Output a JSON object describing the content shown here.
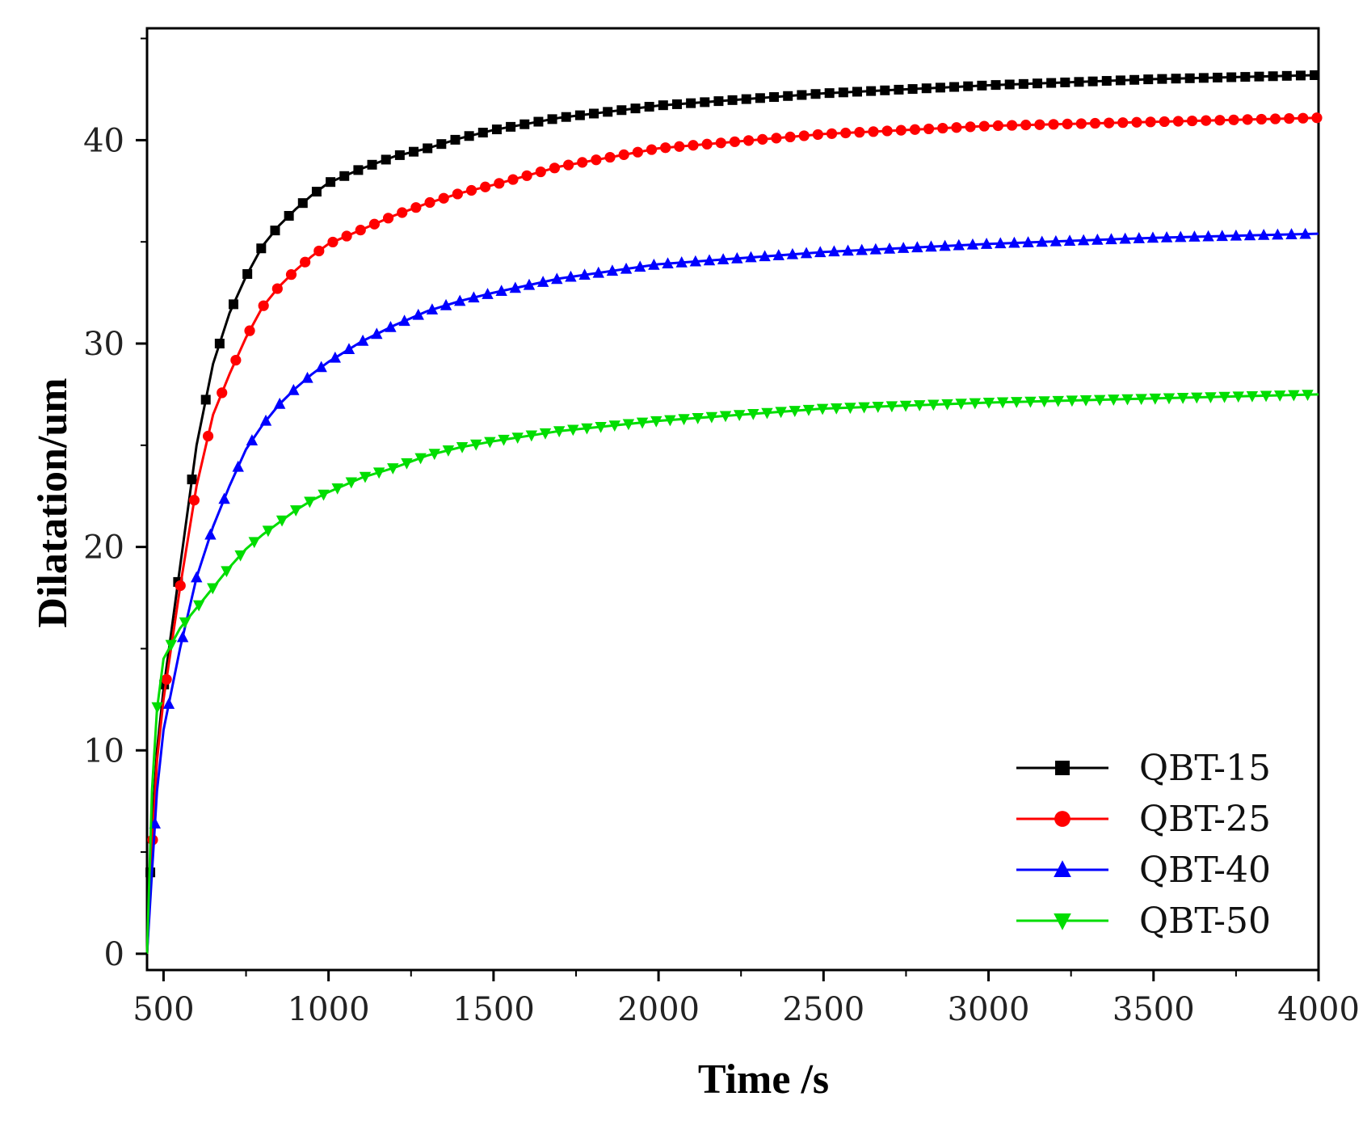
{
  "chart_data": {
    "type": "line",
    "title": "",
    "xlabel": "Time /s",
    "ylabel": "Dilatation/um",
    "xlim": [
      450,
      4000
    ],
    "ylim": [
      -0.8,
      45.5
    ],
    "xticks": [
      500,
      1000,
      1500,
      2000,
      2500,
      3000,
      3500,
      4000
    ],
    "xtick_labels": [
      "500",
      "1000",
      "1500",
      "2000",
      "2500",
      "3000",
      "3500",
      "4000"
    ],
    "yticks": [
      0,
      10,
      20,
      30,
      40
    ],
    "ytick_labels": [
      "0",
      "10",
      "20",
      "30",
      "40"
    ],
    "grid": false,
    "legend_position": "bottom-right",
    "x": [
      450,
      465,
      480,
      500,
      550,
      600,
      650,
      700,
      750,
      800,
      850,
      900,
      950,
      1000,
      1100,
      1200,
      1300,
      1400,
      1500,
      1700,
      2000,
      2500,
      3000,
      3500,
      4000
    ],
    "series": [
      {
        "name": "QBT-15",
        "color": "#000000",
        "marker": "square",
        "values": [
          0,
          6,
          10,
          13,
          19,
          25,
          29,
          31.5,
          33.3,
          34.8,
          35.8,
          36.6,
          37.3,
          37.9,
          38.6,
          39.2,
          39.6,
          40.1,
          40.5,
          41.1,
          41.7,
          42.3,
          42.7,
          43.0,
          43.2
        ]
      },
      {
        "name": "QBT-25",
        "color": "#ff0000",
        "marker": "circle",
        "values": [
          0,
          5,
          9.5,
          12.5,
          18,
          23,
          26.5,
          28.5,
          30.3,
          31.8,
          32.8,
          33.6,
          34.3,
          34.9,
          35.6,
          36.3,
          36.9,
          37.4,
          37.8,
          38.7,
          39.6,
          40.3,
          40.7,
          40.9,
          41.1
        ]
      },
      {
        "name": "QBT-40",
        "color": "#0000ff",
        "marker": "triangle-up",
        "values": [
          0,
          4,
          8,
          11,
          15,
          18.5,
          21,
          23,
          24.8,
          26.0,
          27.0,
          27.8,
          28.5,
          29.1,
          30.1,
          30.9,
          31.6,
          32.1,
          32.5,
          33.2,
          33.9,
          34.5,
          34.9,
          35.2,
          35.4
        ]
      },
      {
        "name": "QBT-50",
        "color": "#00dd00",
        "marker": "triangle-down",
        "values": [
          0,
          8,
          12,
          14.5,
          16,
          17,
          18,
          19,
          19.9,
          20.6,
          21.2,
          21.8,
          22.3,
          22.7,
          23.4,
          23.9,
          24.5,
          24.9,
          25.2,
          25.7,
          26.2,
          26.8,
          27.1,
          27.3,
          27.5
        ]
      }
    ]
  }
}
